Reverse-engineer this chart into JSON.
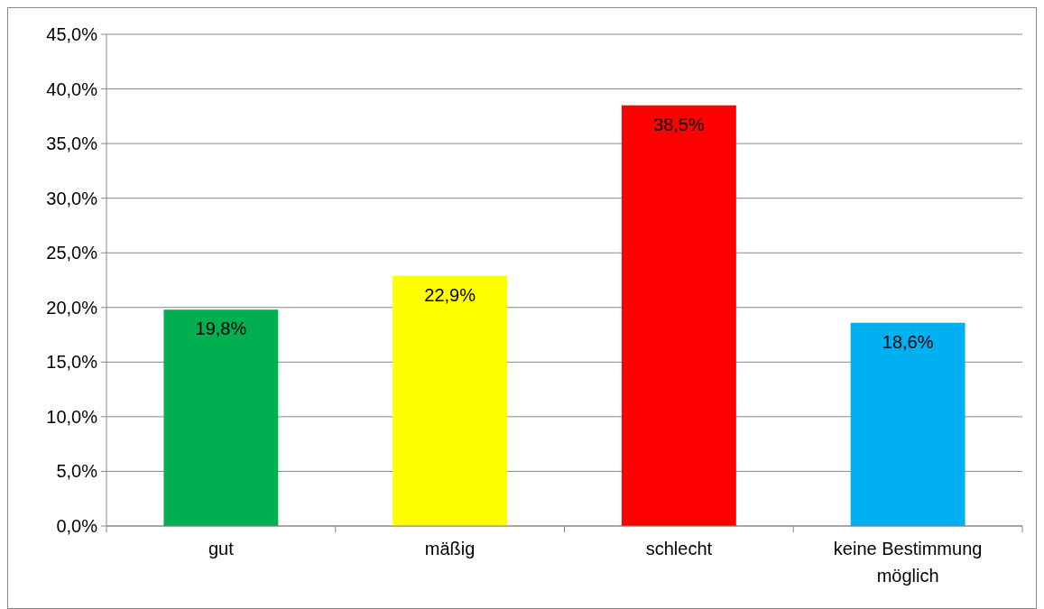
{
  "chart_data": {
    "type": "bar",
    "categories": [
      "gut",
      "mäßig",
      "schlecht",
      "keine Bestimmung möglich"
    ],
    "values": [
      19.8,
      22.9,
      38.5,
      18.6
    ],
    "colors": [
      "#00b050",
      "#ffff00",
      "#ff0000",
      "#00b0f0"
    ],
    "value_labels": [
      "19,8%",
      "22,9%",
      "38,5%",
      "18,6%"
    ],
    "ylim": [
      0,
      45
    ],
    "yticks": [
      {
        "value": 0,
        "label": "0,0%"
      },
      {
        "value": 5,
        "label": "5,0%"
      },
      {
        "value": 10,
        "label": "10,0%"
      },
      {
        "value": 15,
        "label": "15,0%"
      },
      {
        "value": 20,
        "label": "20,0%"
      },
      {
        "value": 25,
        "label": "25,0%"
      },
      {
        "value": 30,
        "label": "30,0%"
      },
      {
        "value": 35,
        "label": "35,0%"
      },
      {
        "value": 40,
        "label": "40,0%"
      },
      {
        "value": 45,
        "label": "45,0%"
      }
    ],
    "grid": "y"
  }
}
